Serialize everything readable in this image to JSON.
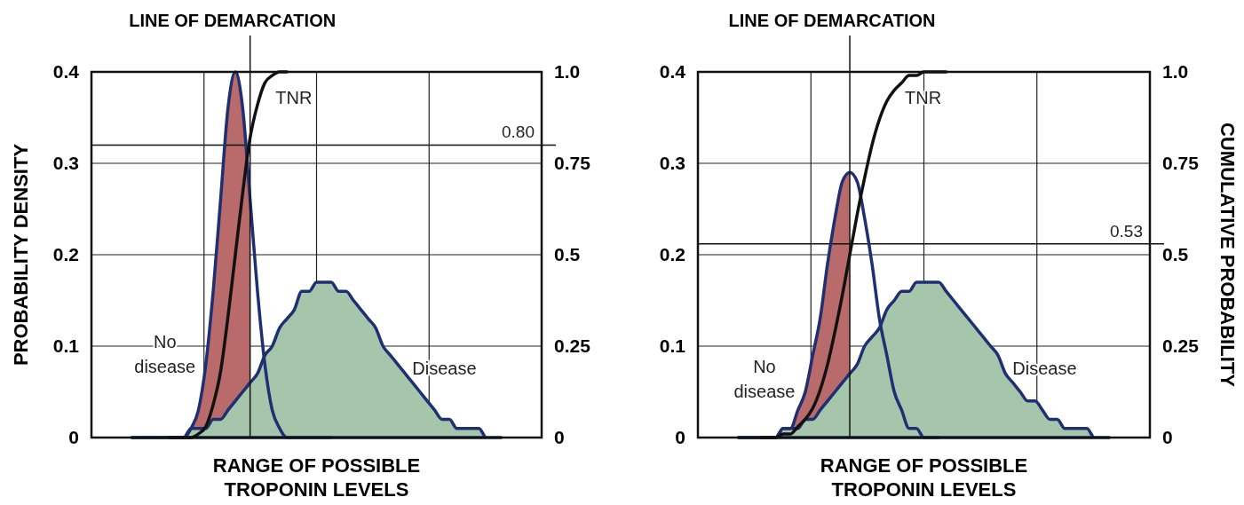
{
  "chart_data": [
    {
      "type": "line",
      "title": "LINE OF DEMARCATION",
      "xlabel": "RANGE OF POSSIBLE\nTROPONIN LEVELS",
      "ylabel": "PROBABILITY DENSITY",
      "categories": [
        null,
        null,
        null,
        null,
        null,
        null,
        null,
        null,
        null,
        null,
        null,
        null,
        null,
        null,
        null,
        null,
        null,
        null,
        null,
        null,
        null,
        null,
        null,
        null,
        null,
        null,
        null,
        null,
        null,
        null,
        null,
        null,
        null,
        null,
        null,
        null,
        null,
        null,
        null,
        null,
        null,
        null,
        null,
        null,
        null,
        null,
        null,
        null,
        null,
        null,
        null
      ],
      "ylim": [
        0,
        0.4
      ],
      "yticks": [
        0,
        0.1,
        0.2,
        0.3,
        0.4
      ],
      "y2lim": [
        0,
        1
      ],
      "y2ticks": [
        0,
        0.25,
        0.5,
        0.75,
        {
          "value": 1,
          "label": "1.0"
        }
      ],
      "grid": true,
      "series": [
        {
          "name": "Disease",
          "type": "area",
          "color": "#a6c6ab",
          "values": [
            0,
            0,
            0,
            0,
            0,
            0,
            0,
            0,
            0.01,
            0.01,
            0.01,
            0.02,
            0.02,
            0.03,
            0.04,
            0.05,
            0.06,
            0.07,
            0.09,
            0.1,
            0.12,
            0.13,
            0.14,
            0.16,
            0.16,
            0.17,
            0.17,
            0.17,
            0.16,
            0.16,
            0.15,
            0.14,
            0.13,
            0.12,
            0.1,
            0.09,
            0.08,
            0.07,
            0.06,
            0.05,
            0.04,
            0.03,
            0.02,
            0.02,
            0.01,
            0.01,
            0.01,
            0.01,
            0,
            0,
            0
          ]
        },
        {
          "type": "area",
          "color": "#b96a6a",
          "values": [
            0,
            0,
            0,
            0,
            0,
            0,
            0,
            0,
            0.01,
            0.03,
            0.08,
            0.16,
            0.26,
            0.36,
            0.4,
            0.36,
            0.26,
            null,
            null,
            null,
            null,
            null,
            null,
            null,
            null,
            null,
            null,
            null,
            null,
            null,
            null,
            null,
            null,
            null,
            null,
            null,
            null,
            null,
            null,
            null,
            null,
            null,
            null,
            null,
            null,
            null,
            null,
            null,
            null,
            null,
            null
          ]
        },
        {
          "name": "No disease",
          "color": "#1e2f72",
          "values": [
            0,
            0,
            0,
            0,
            0,
            0,
            0,
            0,
            0.01,
            0.03,
            0.08,
            0.16,
            0.26,
            0.36,
            0.4,
            0.36,
            0.26,
            0.16,
            0.08,
            0.03,
            0.01,
            0,
            0,
            0,
            0,
            0,
            0,
            0,
            null,
            null,
            null,
            null,
            null,
            null,
            null,
            null,
            null,
            null,
            null,
            null,
            null,
            null,
            null,
            null,
            null,
            null,
            null,
            null,
            null,
            null,
            null
          ]
        },
        {
          "name": "TNR",
          "axis": "y2",
          "color": "#111111",
          "values": [
            null,
            null,
            null,
            null,
            null,
            0,
            0,
            0,
            0,
            0.01,
            0.03,
            0.09,
            0.18,
            0.33,
            0.5,
            0.67,
            0.82,
            0.91,
            0.97,
            0.99,
            1,
            1,
            null,
            null,
            null,
            null,
            null,
            null,
            null,
            null,
            null,
            null,
            null,
            null,
            null,
            null,
            null,
            null,
            null,
            null,
            null,
            null,
            null,
            null,
            null,
            null,
            null,
            null,
            null,
            null,
            null
          ]
        }
      ],
      "ref_lines": [
        {
          "axis": "y2",
          "value": 0.8,
          "label": "0.80"
        }
      ]
    },
    {
      "type": "line",
      "title": "LINE OF DEMARCATION",
      "xlabel": "RANGE OF POSSIBLE\nTROPONIN LEVELS",
      "y2label": "CUMULATIVE PROBABILITY",
      "categories": [
        null,
        null,
        null,
        null,
        null,
        null,
        null,
        null,
        null,
        null,
        null,
        null,
        null,
        null,
        null,
        null,
        null,
        null,
        null,
        null,
        null,
        null,
        null,
        null,
        null,
        null,
        null,
        null,
        null,
        null,
        null,
        null,
        null,
        null,
        null,
        null,
        null,
        null,
        null,
        null,
        null,
        null,
        null,
        null,
        null,
        null,
        null,
        null,
        null,
        null,
        null
      ],
      "ylim": [
        0,
        0.4
      ],
      "yticks": [
        0,
        0.1,
        0.2,
        0.3,
        0.4
      ],
      "y2lim": [
        0,
        1
      ],
      "y2ticks": [
        0,
        0.25,
        0.5,
        0.75,
        {
          "value": 1,
          "label": "1.0"
        }
      ],
      "grid": true,
      "series": [
        {
          "name": "Disease",
          "type": "area",
          "color": "#a6c6ab",
          "values": [
            0,
            0,
            0,
            0,
            0,
            0,
            0.01,
            0.01,
            0.01,
            0.02,
            0.02,
            0.03,
            0.04,
            0.05,
            0.06,
            0.07,
            0.08,
            0.1,
            0.11,
            0.12,
            0.14,
            0.15,
            0.16,
            0.16,
            0.17,
            0.17,
            0.17,
            0.17,
            0.16,
            0.15,
            0.14,
            0.13,
            0.12,
            0.11,
            0.1,
            0.09,
            0.07,
            0.06,
            0.05,
            0.04,
            0.04,
            0.03,
            0.02,
            0.02,
            0.01,
            0.01,
            0.01,
            0.01,
            0,
            0,
            0
          ]
        },
        {
          "type": "area",
          "color": "#b96a6a",
          "values": [
            0,
            0,
            0,
            0,
            0,
            0,
            0.01,
            0.01,
            0.03,
            0.05,
            0.09,
            0.13,
            0.19,
            0.24,
            0.28,
            0.29,
            null,
            null,
            null,
            null,
            null,
            null,
            null,
            null,
            null,
            null,
            null,
            null,
            null,
            null,
            null,
            null,
            null,
            null,
            null,
            null,
            null,
            null,
            null,
            null,
            null,
            null,
            null,
            null,
            null,
            null,
            null,
            null,
            null,
            null,
            null
          ]
        },
        {
          "name": "No disease",
          "color": "#1e2f72",
          "values": [
            0,
            0,
            0,
            0,
            0,
            0,
            0.01,
            0.01,
            0.03,
            0.05,
            0.09,
            0.13,
            0.19,
            0.24,
            0.28,
            0.29,
            0.28,
            0.24,
            0.19,
            0.13,
            0.09,
            0.05,
            0.03,
            0.01,
            0.01,
            0,
            0,
            0,
            null,
            null,
            null,
            null,
            null,
            null,
            null,
            null,
            null,
            null,
            null,
            null,
            null,
            null,
            null,
            null,
            null,
            null,
            null,
            null,
            null,
            null,
            null
          ]
        },
        {
          "name": "TNR",
          "axis": "y2",
          "color": "#111111",
          "values": [
            null,
            null,
            null,
            0,
            0,
            0,
            0.01,
            0.01,
            0.03,
            0.05,
            0.08,
            0.13,
            0.2,
            0.29,
            0.39,
            0.5,
            0.61,
            0.71,
            0.8,
            0.87,
            0.92,
            0.95,
            0.97,
            0.99,
            0.99,
            1,
            1,
            1,
            1,
            null,
            null,
            null,
            null,
            null,
            null,
            null,
            null,
            null,
            null,
            null,
            null,
            null,
            null,
            null,
            null,
            null,
            null,
            null,
            null,
            null,
            null
          ]
        }
      ],
      "ref_lines": [
        {
          "axis": "y2",
          "value": 0.53,
          "label": "0.53"
        }
      ]
    }
  ]
}
